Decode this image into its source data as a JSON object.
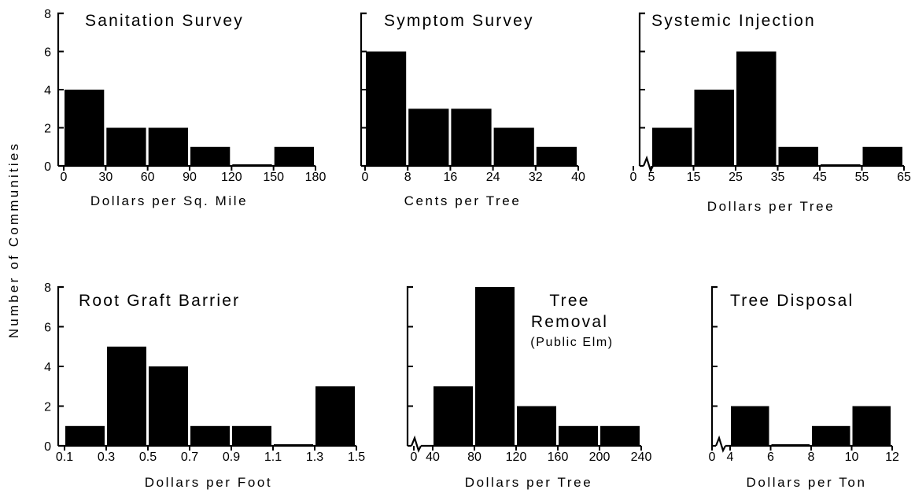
{
  "y_axis_label": "Number of Communities",
  "chart_data": [
    {
      "type": "bar",
      "title": [
        "Sanitation Survey"
      ],
      "xlabel": "Dollars per Sq. Mile",
      "ylabel": "Number of Communities",
      "ylim": [
        0,
        8
      ],
      "yticks": [
        "0",
        "2",
        "4",
        "6",
        "8"
      ],
      "xtick_labels": [
        "0",
        "30",
        "60",
        "90",
        "120",
        "150",
        "180"
      ],
      "bins": [
        [
          0,
          30
        ],
        [
          30,
          60
        ],
        [
          60,
          90
        ],
        [
          90,
          120
        ],
        [
          120,
          150
        ],
        [
          150,
          180
        ]
      ],
      "values": [
        4,
        2,
        2,
        1,
        0,
        1
      ]
    },
    {
      "type": "bar",
      "title": [
        "Symptom Survey"
      ],
      "xlabel": "Cents per Tree",
      "ylim": [
        0,
        8
      ],
      "yticks": [],
      "xtick_labels": [
        "0",
        "8",
        "16",
        "24",
        "32",
        "40"
      ],
      "bins": [
        [
          0,
          8
        ],
        [
          8,
          16
        ],
        [
          16,
          24
        ],
        [
          24,
          32
        ],
        [
          32,
          40
        ]
      ],
      "values": [
        6,
        3,
        3,
        2,
        1
      ]
    },
    {
      "type": "bar",
      "title": [
        "Systemic Injection"
      ],
      "xlabel": "Dollars per Tree",
      "ylim": [
        0,
        8
      ],
      "yticks": [],
      "axis_break": true,
      "xtick_labels": [
        "0",
        "5",
        "15",
        "25",
        "35",
        "45",
        "55",
        "65"
      ],
      "bins": [
        [
          5,
          15
        ],
        [
          15,
          25
        ],
        [
          25,
          35
        ],
        [
          35,
          45
        ],
        [
          45,
          55
        ],
        [
          55,
          65
        ]
      ],
      "values": [
        2,
        4,
        6,
        1,
        0,
        1
      ]
    },
    {
      "type": "bar",
      "title": [
        "Root Graft Barrier"
      ],
      "xlabel": "Dollars per Foot",
      "ylim": [
        0,
        8
      ],
      "yticks": [
        "0",
        "2",
        "4",
        "6",
        "8"
      ],
      "xtick_labels": [
        "0.1",
        "0.3",
        "0.5",
        "0.7",
        "0.9",
        "1.1",
        "1.3",
        "1.5"
      ],
      "bins": [
        [
          0.1,
          0.3
        ],
        [
          0.3,
          0.5
        ],
        [
          0.5,
          0.7
        ],
        [
          0.7,
          0.9
        ],
        [
          0.9,
          1.1
        ],
        [
          1.1,
          1.3
        ],
        [
          1.3,
          1.5
        ]
      ],
      "values": [
        1,
        5,
        4,
        1,
        1,
        0,
        3
      ]
    },
    {
      "type": "bar",
      "title": [
        "Tree",
        "Removal"
      ],
      "subtitle": "(Public Elm)",
      "xlabel": "Dollars per Tree",
      "ylim": [
        0,
        8
      ],
      "yticks": [],
      "axis_break": true,
      "xtick_labels": [
        "0",
        "40",
        "80",
        "120",
        "160",
        "200",
        "240"
      ],
      "bins": [
        [
          40,
          80
        ],
        [
          80,
          120
        ],
        [
          120,
          160
        ],
        [
          160,
          200
        ],
        [
          200,
          240
        ]
      ],
      "values": [
        3,
        8,
        2,
        1,
        1
      ]
    },
    {
      "type": "bar",
      "title": [
        "Tree Disposal"
      ],
      "xlabel": "Dollars per Ton",
      "ylim": [
        0,
        8
      ],
      "yticks": [],
      "axis_break": true,
      "xtick_labels": [
        "0",
        "4",
        "6",
        "8",
        "10",
        "12"
      ],
      "bins": [
        [
          4,
          6
        ],
        [
          6,
          8
        ],
        [
          8,
          10
        ],
        [
          10,
          12
        ]
      ],
      "values": [
        2,
        0,
        1,
        2
      ]
    }
  ]
}
